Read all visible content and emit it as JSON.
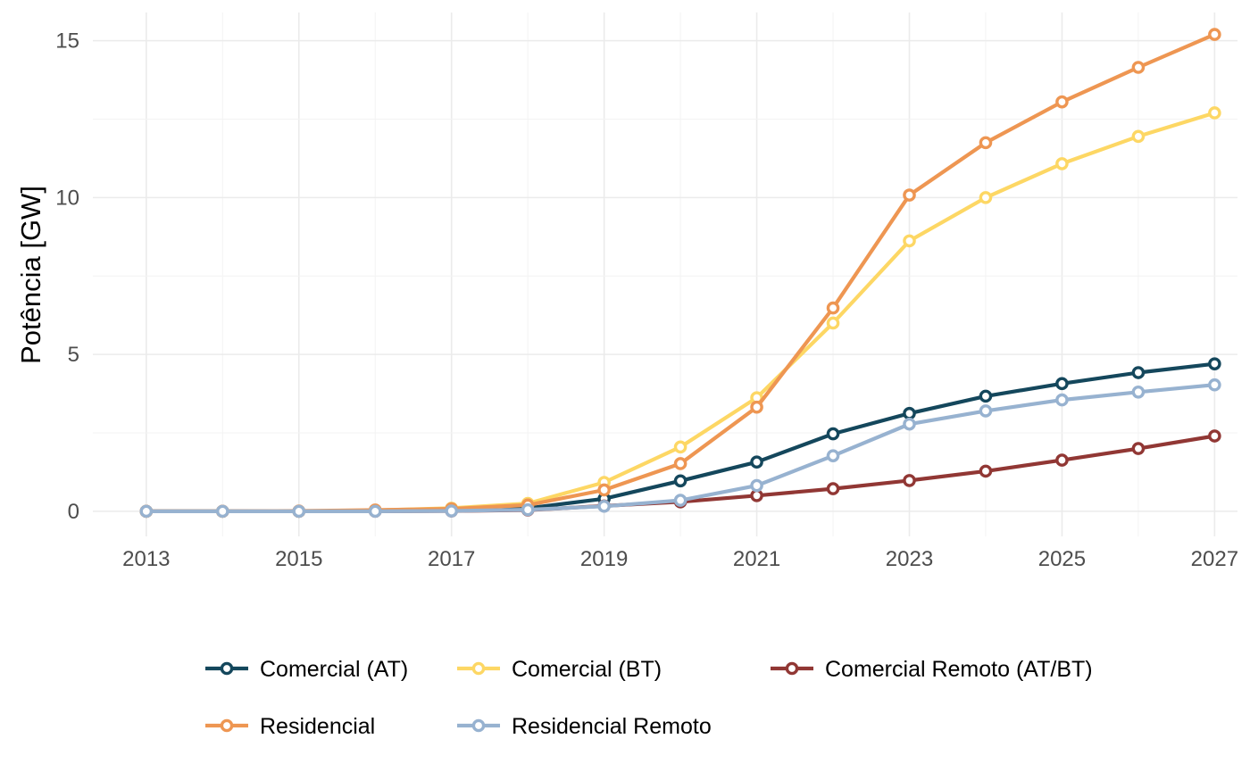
{
  "chart_data": {
    "type": "line",
    "xlabel": "",
    "ylabel": "Potência [GW]",
    "x": [
      2013,
      2014,
      2015,
      2016,
      2017,
      2018,
      2019,
      2020,
      2021,
      2022,
      2023,
      2024,
      2025,
      2026,
      2027
    ],
    "x_ticks": [
      2013,
      2015,
      2017,
      2019,
      2021,
      2023,
      2025,
      2027
    ],
    "y_ticks": [
      0,
      5,
      10,
      15
    ],
    "xlim": [
      2012.3,
      2027.3
    ],
    "ylim": [
      -0.8,
      15.9
    ],
    "grid": true,
    "legend_position": "bottom",
    "series": [
      {
        "name": "Comercial (AT)",
        "color": "#14475c",
        "values": [
          0,
          0,
          0,
          0.01,
          0.03,
          0.1,
          0.4,
          0.97,
          1.57,
          2.47,
          3.12,
          3.67,
          4.07,
          4.42,
          4.7
        ]
      },
      {
        "name": "Comercial (BT)",
        "color": "#fdd764",
        "values": [
          0,
          0,
          0,
          0.03,
          0.1,
          0.25,
          0.92,
          2.05,
          3.62,
          6.0,
          8.62,
          10.0,
          11.08,
          11.95,
          12.7
        ]
      },
      {
        "name": "Comercial Remoto (AT/BT)",
        "color": "#913734",
        "values": [
          0,
          0,
          0,
          0,
          0.01,
          0.04,
          0.17,
          0.3,
          0.5,
          0.72,
          0.98,
          1.28,
          1.63,
          2.0,
          2.4
        ]
      },
      {
        "name": "Residencial",
        "color": "#ee9652",
        "values": [
          0,
          0,
          0.01,
          0.04,
          0.08,
          0.2,
          0.68,
          1.52,
          3.32,
          6.48,
          10.08,
          11.75,
          13.05,
          14.15,
          15.2
        ]
      },
      {
        "name": "Residencial Remoto",
        "color": "#97b2d0",
        "values": [
          0,
          0,
          0,
          0,
          0.01,
          0.05,
          0.16,
          0.35,
          0.82,
          1.77,
          2.78,
          3.2,
          3.55,
          3.8,
          4.03
        ]
      }
    ]
  }
}
